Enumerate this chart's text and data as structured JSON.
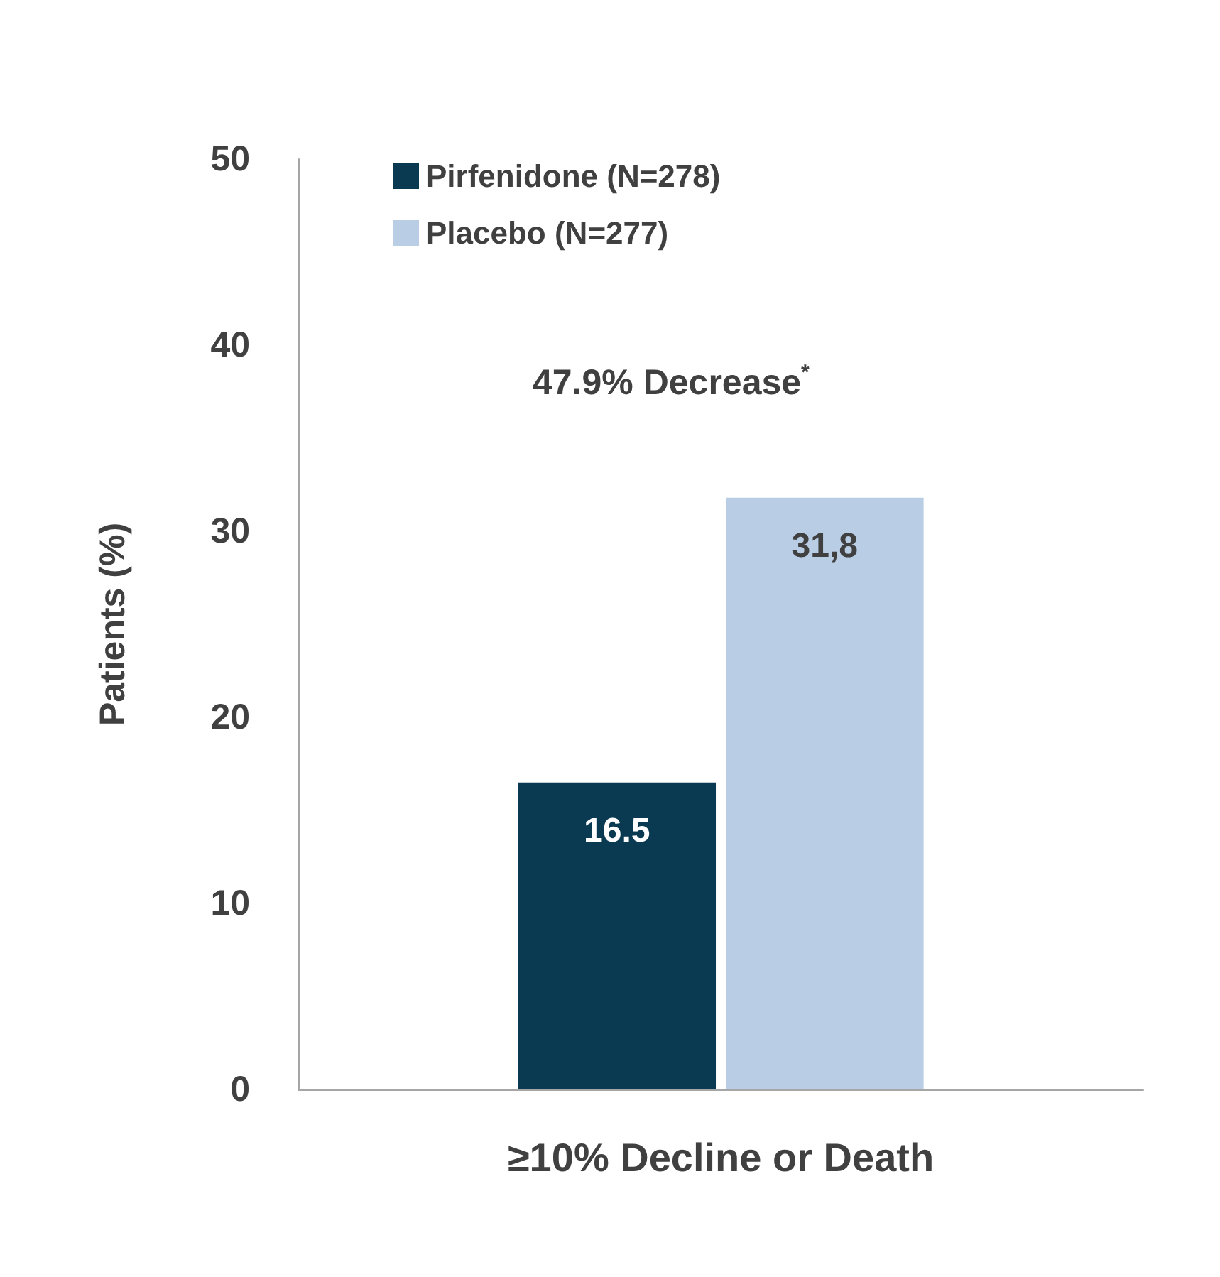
{
  "chart_data": {
    "type": "bar",
    "ylabel": "Patients (%)",
    "categories": [
      "≥10% Decline or Death"
    ],
    "series": [
      {
        "name": "Pirfenidone (N=278)",
        "color": "#0a3a52",
        "values": [
          16.5
        ],
        "value_labels": [
          "16.5"
        ]
      },
      {
        "name": "Placebo (N=277)",
        "color": "#b9cde5",
        "values": [
          31.8
        ],
        "value_labels": [
          "31,8"
        ]
      }
    ],
    "ylim": [
      0,
      50
    ],
    "yticks": [
      0,
      10,
      20,
      30,
      40,
      50
    ],
    "grid": false,
    "legend": "top left",
    "annotations": [
      "47.9% Decrease$^{*}$"
    ]
  }
}
